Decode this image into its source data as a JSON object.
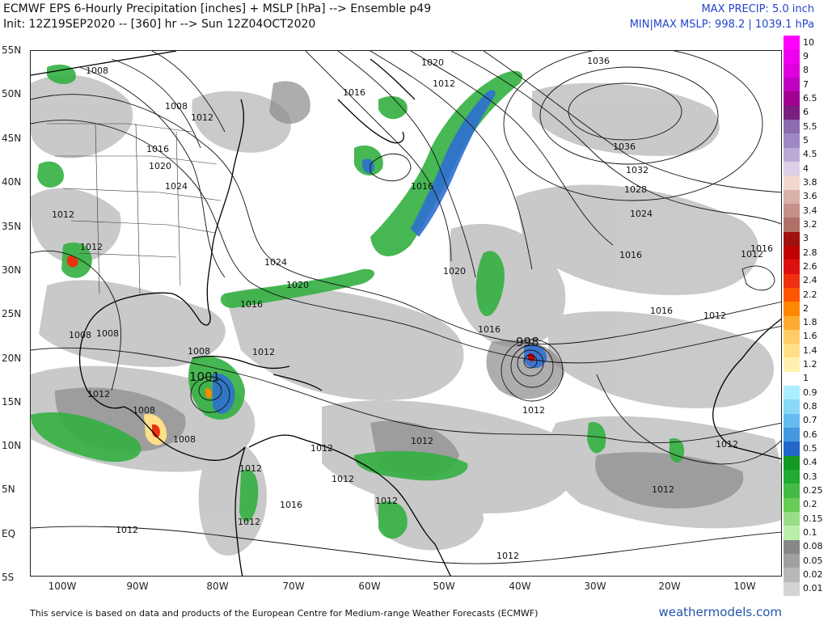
{
  "title": {
    "line1": "ECMWF EPS 6-Hourly Precipitation [inches] + MSLP [hPa] --> Ensemble p49",
    "line2": "Init: 12Z19SEP2020 -- [360] hr --> Sun 12Z04OCT2020"
  },
  "info": {
    "max_precip": "MAX PRECIP: 5.0 inch",
    "min_max_mslp": "MIN|MAX MSLP: 998.2 | 1039.1 hPa"
  },
  "axes": {
    "lat_labels": [
      "55N",
      "50N",
      "45N",
      "40N",
      "35N",
      "30N",
      "25N",
      "20N",
      "15N",
      "10N",
      "5N",
      "EQ",
      "5S"
    ],
    "lon_labels": [
      "100W",
      "90W",
      "80W",
      "70W",
      "60W",
      "50W",
      "40W",
      "30W",
      "20W",
      "10W"
    ]
  },
  "colorbar": {
    "labels": [
      "10",
      "9",
      "8",
      "7",
      "6.5",
      "6",
      "5.5",
      "5",
      "4.5",
      "4",
      "3.8",
      "3.6",
      "3.4",
      "3.2",
      "3",
      "2.8",
      "2.6",
      "2.4",
      "2.2",
      "2",
      "1.8",
      "1.6",
      "1.4",
      "1.2",
      "1",
      "0.9",
      "0.8",
      "0.7",
      "0.6",
      "0.5",
      "0.4",
      "0.3",
      "0.25",
      "0.2",
      "0.15",
      "0.1",
      "0.08",
      "0.05",
      "0.02",
      "0.01"
    ],
    "colors": [
      "#ff00ff",
      "#ee00ee",
      "#dd00dd",
      "#c000c0",
      "#a00090",
      "#7a1f80",
      "#8c6bb1",
      "#9e88c4",
      "#bcaad6",
      "#dcd0e8",
      "#f0d8d0",
      "#d8b0a8",
      "#c49088",
      "#b07068",
      "#a01010",
      "#c00000",
      "#dd1010",
      "#ee3010",
      "#ff5500",
      "#ff8800",
      "#ffaa33",
      "#ffcc66",
      "#ffe088",
      "#fff0b0",
      "#ffffff",
      "#aaeeff",
      "#88d8f8",
      "#66bbf0",
      "#4499e0",
      "#2266cc",
      "#119922",
      "#22aa33",
      "#44bb44",
      "#66cc55",
      "#99dd88",
      "#bbeeaa",
      "#888888",
      "#a0a0a0",
      "#b8b8b8",
      "#d4d4d4"
    ]
  },
  "pressure_labels": [
    "1020",
    "1036",
    "1008",
    "1012",
    "1016",
    "1008",
    "1012",
    "1016",
    "1036",
    "1016",
    "1020",
    "1032",
    "1024",
    "1028",
    "1024",
    "1012",
    "1012",
    "1016",
    "1024",
    "1020",
    "1020",
    "1016",
    "1016",
    "1016",
    "1012",
    "1008",
    "1008",
    "1008",
    "1012",
    "1016",
    "998",
    "1001",
    "1012",
    "1012",
    "1008",
    "1012",
    "1008",
    "1012",
    "1012",
    "1012",
    "1012",
    "1012",
    "1012",
    "1016",
    "1012",
    "1012",
    "1012",
    "1012"
  ],
  "low_centers": [
    "998",
    "1001"
  ],
  "footer": "This service is based on data and products of the European Centre for Medium-range Weather Forecasts (ECMWF)",
  "brand": "weathermodels.com"
}
